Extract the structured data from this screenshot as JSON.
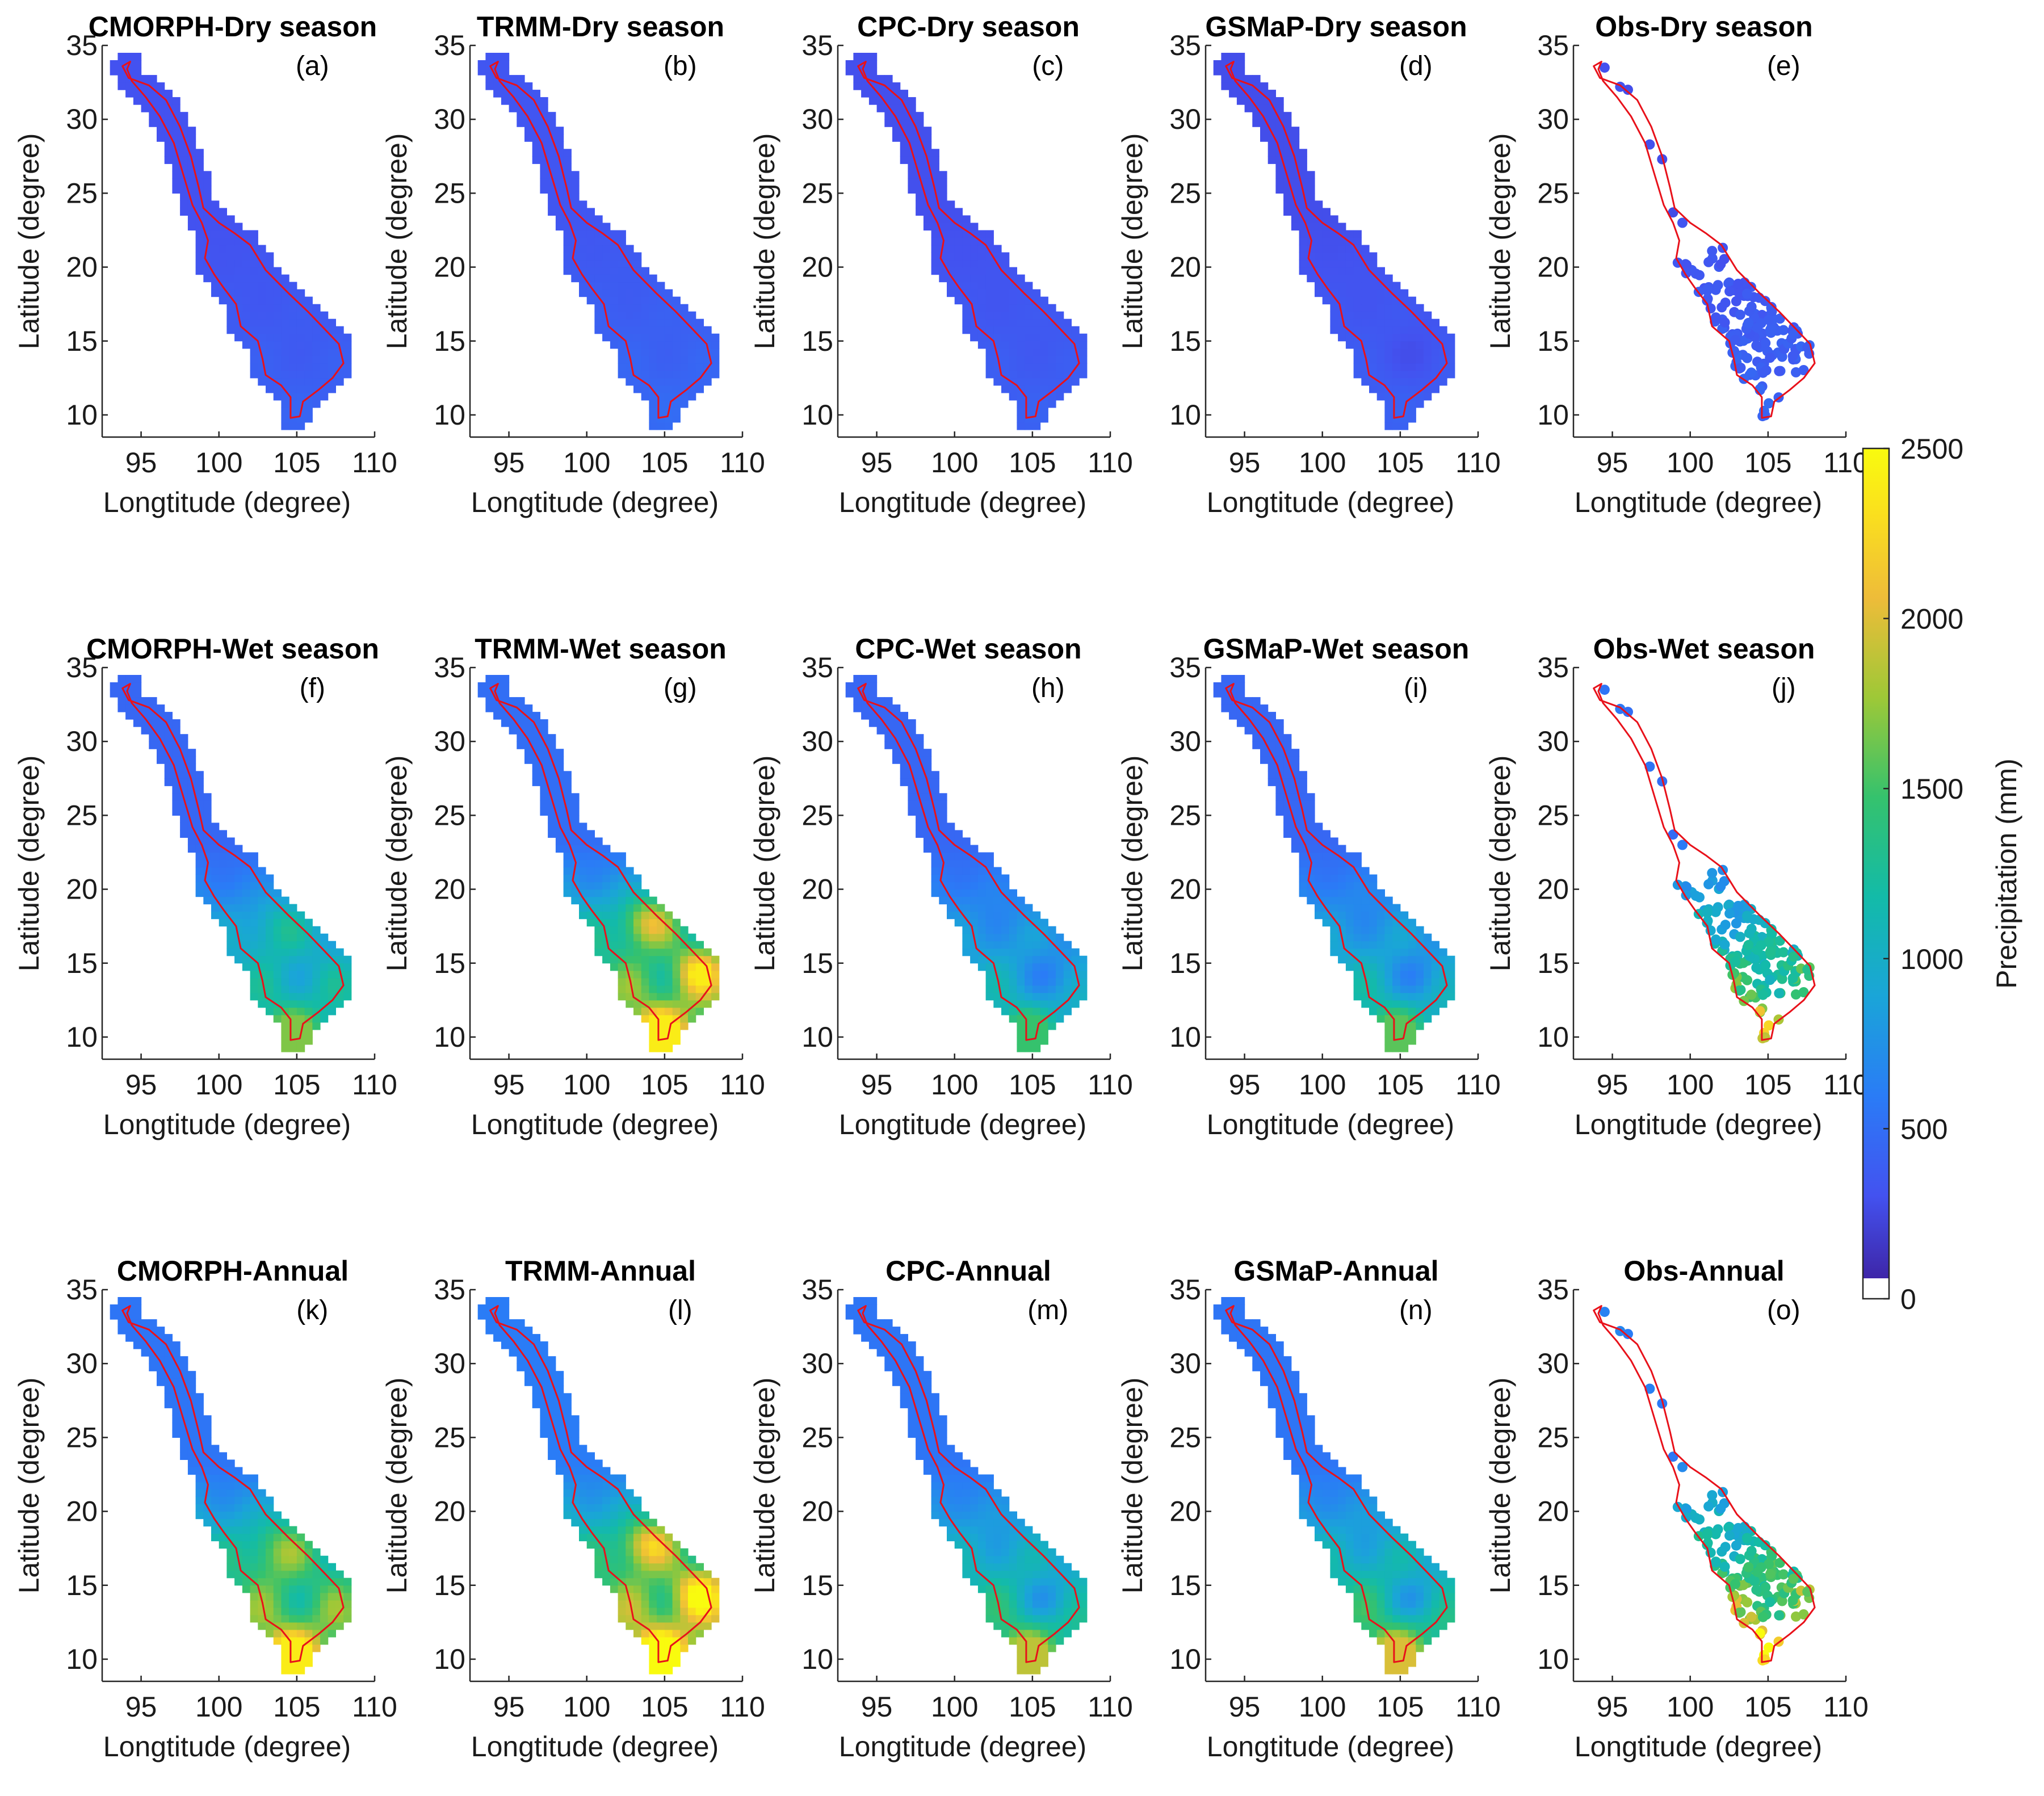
{
  "chart_data": {
    "type": "heatmap",
    "xlabel": "Longtitude (degree)",
    "ylabel": "Latitude (degree)",
    "xlim": [
      92.5,
      110
    ],
    "ylim": [
      8.5,
      35
    ],
    "xticks": [
      95,
      100,
      105,
      110
    ],
    "yticks": [
      10,
      15,
      20,
      25,
      30,
      35
    ],
    "colorbar": {
      "label": "Precipitation (mm)",
      "min": 0,
      "max": 2500,
      "ticks": [
        0,
        500,
        1000,
        1500,
        2000,
        2500
      ],
      "colors": [
        "#ffffff",
        "#3e26a8",
        "#4352f0",
        "#2a7cf6",
        "#1aa5d8",
        "#13bba8",
        "#35c26d",
        "#9ec837",
        "#eebc39",
        "#fadf1e",
        "#f9fb0e"
      ]
    },
    "basin_outline": [
      [
        94.3,
        33.9
      ],
      [
        93.8,
        33.6
      ],
      [
        94.2,
        32.8
      ],
      [
        95.5,
        32.3
      ],
      [
        96.6,
        31.3
      ],
      [
        97.5,
        29.5
      ],
      [
        98.2,
        27.5
      ],
      [
        98.7,
        25.4
      ],
      [
        99.0,
        24.0
      ],
      [
        100.0,
        23.0
      ],
      [
        101.0,
        22.3
      ],
      [
        102.0,
        21.5
      ],
      [
        103.0,
        19.8
      ],
      [
        104.5,
        18.2
      ],
      [
        105.7,
        17.0
      ],
      [
        106.8,
        15.8
      ],
      [
        107.7,
        14.8
      ],
      [
        108.0,
        13.5
      ],
      [
        107.3,
        12.5
      ],
      [
        106.4,
        11.7
      ],
      [
        105.4,
        10.9
      ],
      [
        105.2,
        9.9
      ],
      [
        104.6,
        9.8
      ],
      [
        104.6,
        11.2
      ],
      [
        104.0,
        12.0
      ],
      [
        103.0,
        12.7
      ],
      [
        102.8,
        13.8
      ],
      [
        102.5,
        15.0
      ],
      [
        101.4,
        16.0
      ],
      [
        101.1,
        17.5
      ],
      [
        100.3,
        18.6
      ],
      [
        99.7,
        19.5
      ],
      [
        99.1,
        20.6
      ],
      [
        99.3,
        21.8
      ],
      [
        98.9,
        23.0
      ],
      [
        98.3,
        24.2
      ],
      [
        97.7,
        26.3
      ],
      [
        97.1,
        28.4
      ],
      [
        96.2,
        30.2
      ],
      [
        95.3,
        31.5
      ],
      [
        94.4,
        32.6
      ],
      [
        94.1,
        33.4
      ]
    ],
    "panels": [
      {
        "title": "CMORPH-Dry season",
        "label": "(a)",
        "kind": "grid",
        "product": "CMORPH",
        "season": "dry",
        "base_mm": 250,
        "max_mm": 400
      },
      {
        "title": "TRMM-Dry season",
        "label": "(b)",
        "kind": "grid",
        "product": "TRMM",
        "season": "dry",
        "base_mm": 280,
        "max_mm": 450
      },
      {
        "title": "CPC-Dry season",
        "label": "(c)",
        "kind": "grid",
        "product": "CPC",
        "season": "dry",
        "base_mm": 240,
        "max_mm": 380
      },
      {
        "title": "GSMaP-Dry season",
        "label": "(d)",
        "kind": "grid",
        "product": "GSMaP",
        "season": "dry",
        "base_mm": 230,
        "max_mm": 380
      },
      {
        "title": "Obs-Dry season",
        "label": "(e)",
        "kind": "stations",
        "product": "Obs",
        "season": "dry",
        "base_mm": 250,
        "max_mm": 420
      },
      {
        "title": "CMORPH-Wet season",
        "label": "(f)",
        "kind": "grid",
        "product": "CMORPH",
        "season": "wet",
        "base_mm": 400,
        "max_mm": 1600
      },
      {
        "title": "TRMM-Wet season",
        "label": "(g)",
        "kind": "grid",
        "product": "TRMM",
        "season": "wet",
        "base_mm": 450,
        "max_mm": 2300
      },
      {
        "title": "CPC-Wet season",
        "label": "(h)",
        "kind": "grid",
        "product": "CPC",
        "season": "wet",
        "base_mm": 400,
        "max_mm": 1400
      },
      {
        "title": "GSMaP-Wet season",
        "label": "(i)",
        "kind": "grid",
        "product": "GSMaP",
        "season": "wet",
        "base_mm": 400,
        "max_mm": 1500
      },
      {
        "title": "Obs-Wet season",
        "label": "(j)",
        "kind": "stations",
        "product": "Obs",
        "season": "wet",
        "base_mm": 500,
        "max_mm": 2000
      },
      {
        "title": "CMORPH-Annual",
        "label": "(k)",
        "kind": "grid",
        "product": "CMORPH",
        "season": "annual",
        "base_mm": 500,
        "max_mm": 2300
      },
      {
        "title": "TRMM-Annual",
        "label": "(l)",
        "kind": "grid",
        "product": "TRMM",
        "season": "annual",
        "base_mm": 550,
        "max_mm": 2500
      },
      {
        "title": "CPC-Annual",
        "label": "(m)",
        "kind": "grid",
        "product": "CPC",
        "season": "annual",
        "base_mm": 500,
        "max_mm": 1800
      },
      {
        "title": "GSMaP-Annual",
        "label": "(n)",
        "kind": "grid",
        "product": "GSMaP",
        "season": "annual",
        "base_mm": 500,
        "max_mm": 1900
      },
      {
        "title": "Obs-Annual",
        "label": "(o)",
        "kind": "stations",
        "product": "Obs",
        "season": "annual",
        "base_mm": 600,
        "max_mm": 2400
      }
    ]
  }
}
